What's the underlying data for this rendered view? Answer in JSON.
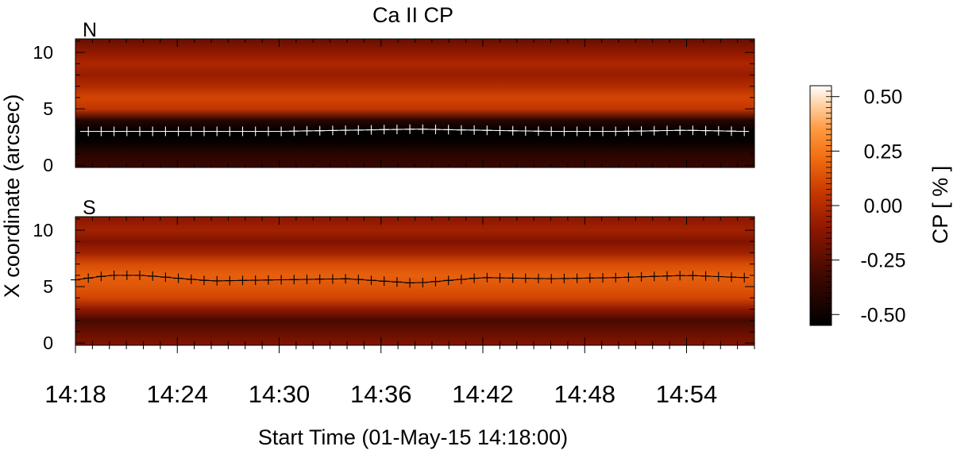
{
  "chart_data": {
    "type": "heatmap",
    "title": "Ca II CP",
    "xlabel": "Start Time (01-May-15 14:18:00)",
    "ylabel": "X coordinate (arcsec)",
    "x_ticks": [
      "14:18",
      "14:24",
      "14:30",
      "14:36",
      "14:42",
      "14:48",
      "14:54"
    ],
    "x_tick_minutes": [
      0,
      6,
      12,
      18,
      24,
      30,
      36
    ],
    "xlim_minutes": [
      0,
      40
    ],
    "y_ticks": [
      "0",
      "5",
      "10"
    ],
    "y_tick_values": [
      0,
      5,
      10
    ],
    "ylim": [
      -0.2,
      11.2
    ],
    "colorbar": {
      "label": "CP [ % ]",
      "ticks": [
        "0.50",
        "0.25",
        "0.00",
        "-0.25",
        "-0.50"
      ],
      "tick_values": [
        0.5,
        0.25,
        0.0,
        -0.25,
        -0.5
      ],
      "range": [
        -0.55,
        0.55
      ]
    },
    "panels": [
      {
        "label": "N",
        "marker_color": "#ffffff",
        "profile": [
          {
            "y": 0.0,
            "cp": -0.35
          },
          {
            "y": 1.0,
            "cp": -0.4
          },
          {
            "y": 2.0,
            "cp": -0.52
          },
          {
            "y": 3.0,
            "cp": -0.58
          },
          {
            "y": 4.0,
            "cp": -0.4
          },
          {
            "y": 5.0,
            "cp": 0.05
          },
          {
            "y": 6.0,
            "cp": 0.1
          },
          {
            "y": 7.0,
            "cp": 0.0
          },
          {
            "y": 8.0,
            "cp": -0.08
          },
          {
            "y": 9.0,
            "cp": -0.02
          },
          {
            "y": 10.0,
            "cp": -0.1
          },
          {
            "y": 11.2,
            "cp": -0.22
          }
        ],
        "trace": {
          "t": [
            0,
            4,
            8,
            12,
            16,
            20,
            24,
            28,
            32,
            36,
            39.4
          ],
          "x": [
            3.0,
            3.0,
            3.0,
            3.0,
            3.1,
            3.2,
            3.1,
            3.0,
            3.0,
            3.1,
            3.0
          ]
        }
      },
      {
        "label": "S",
        "marker_color": "#000000",
        "profile": [
          {
            "y": 0.0,
            "cp": -0.15
          },
          {
            "y": 1.0,
            "cp": -0.22
          },
          {
            "y": 2.0,
            "cp": -0.3
          },
          {
            "y": 3.0,
            "cp": -0.1
          },
          {
            "y": 4.0,
            "cp": 0.1
          },
          {
            "y": 5.0,
            "cp": 0.15
          },
          {
            "y": 6.0,
            "cp": 0.18
          },
          {
            "y": 7.0,
            "cp": 0.12
          },
          {
            "y": 8.0,
            "cp": -0.05
          },
          {
            "y": 9.0,
            "cp": -0.15
          },
          {
            "y": 10.0,
            "cp": -0.05
          },
          {
            "y": 11.2,
            "cp": -0.12
          }
        ],
        "trace": {
          "t": [
            0,
            2,
            4,
            8,
            12,
            16,
            20,
            24,
            28,
            32,
            36,
            39.4
          ],
          "x": [
            5.6,
            6.0,
            6.0,
            5.5,
            5.6,
            5.7,
            5.3,
            5.8,
            5.7,
            5.8,
            6.0,
            5.8
          ]
        }
      }
    ]
  }
}
